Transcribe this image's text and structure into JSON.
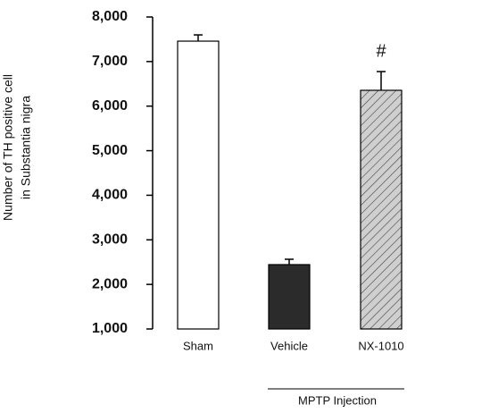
{
  "chart_data": {
    "type": "bar",
    "y_label": [
      "Number of TH positive cell",
      "in Substantia nigra"
    ],
    "categories": [
      "Sham",
      "Vehicle",
      "NX-1010"
    ],
    "values": [
      7458,
      2444,
      6355
    ],
    "errors": [
      140,
      120,
      420
    ],
    "colors": [
      "#ffffff",
      "#2b2b2b",
      "#cfcfcf"
    ],
    "hatch": [
      false,
      false,
      true
    ],
    "annotation": "#",
    "group_label": "MPTP Injection",
    "ylim": [
      1000,
      8000
    ],
    "yticks": [
      {
        "value": 1000,
        "label": "1,000"
      },
      {
        "value": 2000,
        "label": "2,000"
      },
      {
        "value": 3000,
        "label": "3,000"
      },
      {
        "value": 4000,
        "label": "4,000"
      },
      {
        "value": 5000,
        "label": "5,000"
      },
      {
        "value": 6000,
        "label": "6,000"
      },
      {
        "value": 7000,
        "label": "7,000"
      },
      {
        "value": 8000,
        "label": "8,000"
      }
    ],
    "grid": false
  }
}
